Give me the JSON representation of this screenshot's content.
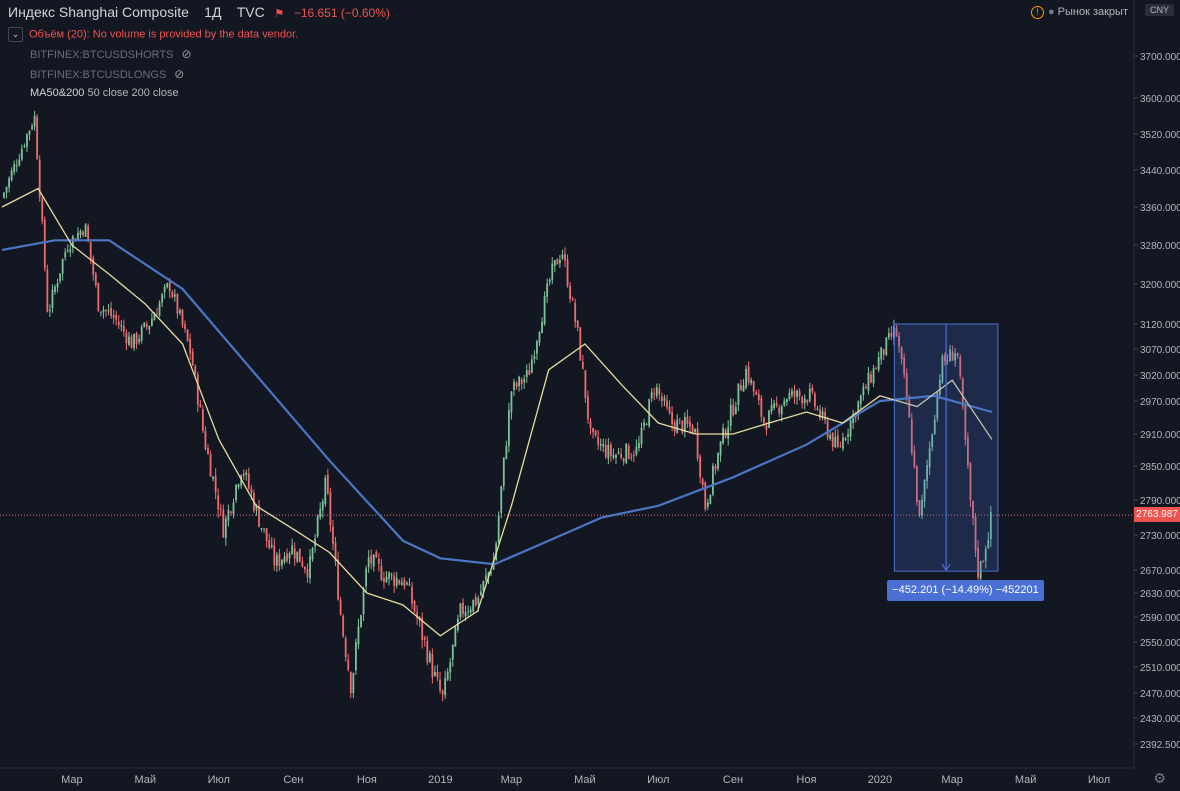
{
  "legend": {
    "symbol": "Индекс Shanghai Composite",
    "interval": "1Д",
    "source": "TVC",
    "change": "−16.651 (−0.60%)"
  },
  "indicators": {
    "volume": "Объём (20): No volume is provided by the data vendor.",
    "shorts": "BITFINEX:BTCUSDSHORTS",
    "longs": "BITFINEX:BTCUSDLONGS",
    "ma_name": "MA50&200",
    "ma_params": "50 close 200 close"
  },
  "market_status": "Рынок закрыт",
  "currency": "CNY",
  "last_price": "2763.987",
  "measure_label": "−452.201 (−14.49%) −452201",
  "colors": {
    "background": "#131722",
    "up": "#7ec29a",
    "down": "#ef6b6f",
    "ma50": "#e6dd9e",
    "ma200": "#4a76c4",
    "measure": "#4a70d6"
  },
  "chart_data": {
    "type": "candlestick",
    "y_ticks": [
      "3700.000",
      "3600.000",
      "3520.000",
      "3440.000",
      "3360.000",
      "3280.000",
      "3200.000",
      "3120.000",
      "3070.000",
      "3020.000",
      "2970.000",
      "2910.000",
      "2850.000",
      "2790.000",
      "2730.000",
      "2670.000",
      "2630.000",
      "2590.000",
      "2550.000",
      "2510.000",
      "2470.000",
      "2430.000",
      "2392.500"
    ],
    "x_ticks": [
      "Мар",
      "Май",
      "Июл",
      "Сен",
      "Ноя",
      "2019",
      "Мар",
      "Май",
      "Июл",
      "Сен",
      "Ноя",
      "2020",
      "Мар",
      "Май",
      "Июл"
    ],
    "ylim": [
      2380,
      3760
    ],
    "close_path": [
      [
        "2018-01-02",
        3380
      ],
      [
        "2018-01-20",
        3500
      ],
      [
        "2018-01-29",
        3560
      ],
      [
        "2018-02-09",
        3140
      ],
      [
        "2018-02-25",
        3280
      ],
      [
        "2018-03-12",
        3320
      ],
      [
        "2018-03-23",
        3160
      ],
      [
        "2018-04-06",
        3130
      ],
      [
        "2018-04-20",
        3080
      ],
      [
        "2018-05-04",
        3120
      ],
      [
        "2018-05-21",
        3200
      ],
      [
        "2018-06-08",
        3060
      ],
      [
        "2018-06-19",
        2900
      ],
      [
        "2018-07-05",
        2740
      ],
      [
        "2018-07-20",
        2850
      ],
      [
        "2018-08-03",
        2760
      ],
      [
        "2018-08-17",
        2680
      ],
      [
        "2018-08-30",
        2710
      ],
      [
        "2018-09-14",
        2670
      ],
      [
        "2018-09-28",
        2820
      ],
      [
        "2018-10-11",
        2580
      ],
      [
        "2018-10-19",
        2480
      ],
      [
        "2018-11-02",
        2690
      ],
      [
        "2018-11-16",
        2660
      ],
      [
        "2018-12-03",
        2650
      ],
      [
        "2018-12-28",
        2490
      ],
      [
        "2019-01-03",
        2460
      ],
      [
        "2019-01-18",
        2600
      ],
      [
        "2019-02-01",
        2620
      ],
      [
        "2019-02-15",
        2690
      ],
      [
        "2019-03-01",
        2990
      ],
      [
        "2019-03-15",
        3020
      ],
      [
        "2019-04-03",
        3220
      ],
      [
        "2019-04-12",
        3270
      ],
      [
        "2019-04-25",
        3100
      ],
      [
        "2019-05-06",
        2900
      ],
      [
        "2019-05-24",
        2870
      ],
      [
        "2019-06-14",
        2880
      ],
      [
        "2019-06-28",
        3000
      ],
      [
        "2019-07-12",
        2930
      ],
      [
        "2019-07-31",
        2920
      ],
      [
        "2019-08-09",
        2780
      ],
      [
        "2019-08-23",
        2900
      ],
      [
        "2019-09-12",
        3030
      ],
      [
        "2019-09-27",
        2930
      ],
      [
        "2019-10-16",
        2980
      ],
      [
        "2019-11-04",
        2980
      ],
      [
        "2019-11-27",
        2880
      ],
      [
        "2019-12-13",
        2960
      ],
      [
        "2019-12-31",
        3050
      ],
      [
        "2020-01-14",
        3110
      ],
      [
        "2020-01-23",
        2980
      ],
      [
        "2020-02-03",
        2750
      ],
      [
        "2020-02-21",
        3040
      ],
      [
        "2020-03-05",
        3070
      ],
      [
        "2020-03-16",
        2790
      ],
      [
        "2020-03-23",
        2660
      ],
      [
        "2020-04-03",
        2763
      ]
    ],
    "ma50_path": [
      [
        "2018-01-02",
        3360
      ],
      [
        "2018-02-01",
        3400
      ],
      [
        "2018-03-01",
        3280
      ],
      [
        "2018-04-01",
        3220
      ],
      [
        "2018-05-01",
        3160
      ],
      [
        "2018-06-01",
        3080
      ],
      [
        "2018-07-01",
        2900
      ],
      [
        "2018-08-01",
        2780
      ],
      [
        "2018-09-01",
        2740
      ],
      [
        "2018-10-01",
        2700
      ],
      [
        "2018-11-01",
        2630
      ],
      [
        "2018-12-01",
        2610
      ],
      [
        "2019-01-01",
        2560
      ],
      [
        "2019-02-01",
        2600
      ],
      [
        "2019-03-01",
        2780
      ],
      [
        "2019-04-01",
        3030
      ],
      [
        "2019-05-01",
        3080
      ],
      [
        "2019-06-01",
        3000
      ],
      [
        "2019-07-01",
        2930
      ],
      [
        "2019-08-01",
        2910
      ],
      [
        "2019-09-01",
        2910
      ],
      [
        "2019-10-01",
        2930
      ],
      [
        "2019-11-01",
        2950
      ],
      [
        "2019-12-01",
        2930
      ],
      [
        "2020-01-01",
        2980
      ],
      [
        "2020-02-01",
        2960
      ],
      [
        "2020-03-01",
        3010
      ],
      [
        "2020-04-03",
        2900
      ]
    ],
    "ma200_path": [
      [
        "2018-01-02",
        3270
      ],
      [
        "2018-02-15",
        3290
      ],
      [
        "2018-04-01",
        3290
      ],
      [
        "2018-06-01",
        3190
      ],
      [
        "2018-08-01",
        3020
      ],
      [
        "2018-10-01",
        2860
      ],
      [
        "2018-12-01",
        2720
      ],
      [
        "2019-01-01",
        2690
      ],
      [
        "2019-02-15",
        2680
      ],
      [
        "2019-04-01",
        2720
      ],
      [
        "2019-05-15",
        2760
      ],
      [
        "2019-07-01",
        2780
      ],
      [
        "2019-09-01",
        2830
      ],
      [
        "2019-11-01",
        2890
      ],
      [
        "2020-01-01",
        2970
      ],
      [
        "2020-02-15",
        2980
      ],
      [
        "2020-04-03",
        2950
      ]
    ],
    "measure": {
      "from_date": "2020-01-13",
      "to_date": "2020-04-03",
      "high": 3120,
      "low": 2668,
      "change": -452.201,
      "pct": -14.49
    }
  }
}
